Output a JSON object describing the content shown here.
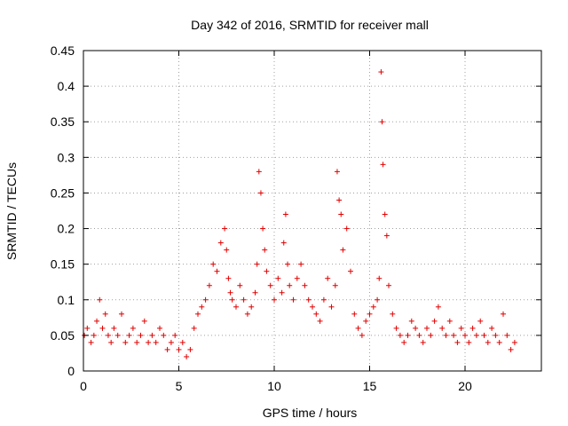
{
  "chart_data": {
    "type": "scatter",
    "title": "Day 342 of 2016, SRMTID for receiver mall",
    "xlabel": "GPS time / hours",
    "ylabel": "SRMTID / TECUs",
    "xlim": [
      0,
      24
    ],
    "ylim": [
      0,
      0.45
    ],
    "xticks": [
      0,
      5,
      10,
      15,
      20
    ],
    "xtick_labels": [
      "0",
      "5",
      "10",
      "15",
      "20"
    ],
    "yticks": [
      0,
      0.05,
      0.1,
      0.15,
      0.2,
      0.25,
      0.3,
      0.35,
      0.4,
      0.45
    ],
    "ytick_labels": [
      "0",
      "0.05",
      "0.1",
      "0.15",
      "0.2",
      "0.25",
      "0.3",
      "0.35",
      "0.4",
      "0.45"
    ],
    "grid": true,
    "marker": "plus",
    "marker_color": "#e00000",
    "series": [
      {
        "x": [
          0.05,
          0.2,
          0.4,
          0.55,
          0.7,
          0.85,
          1.0,
          1.15,
          1.3,
          1.45,
          1.6,
          1.8,
          2.0,
          2.2,
          2.4,
          2.6,
          2.8,
          3.0,
          3.2,
          3.4,
          3.6,
          3.8,
          4.0,
          4.2,
          4.4,
          4.6,
          4.8,
          5.0,
          5.2,
          5.4,
          5.6,
          5.8,
          6.0,
          6.2,
          6.4,
          6.6,
          6.8,
          7.0,
          7.2,
          7.4,
          7.5,
          7.6,
          7.7,
          7.8,
          8.0,
          8.2,
          8.4,
          8.6,
          8.8,
          9.0,
          9.1,
          9.2,
          9.3,
          9.4,
          9.5,
          9.6,
          9.8,
          10.0,
          10.2,
          10.4,
          10.5,
          10.6,
          10.7,
          10.8,
          11.0,
          11.2,
          11.4,
          11.6,
          11.8,
          12.0,
          12.2,
          12.4,
          12.6,
          12.8,
          13.0,
          13.2,
          13.3,
          13.4,
          13.5,
          13.6,
          13.8,
          14.0,
          14.2,
          14.4,
          14.6,
          14.8,
          15.0,
          15.2,
          15.4,
          15.5,
          15.6,
          15.65,
          15.7,
          15.8,
          15.9,
          16.0,
          16.2,
          16.4,
          16.6,
          16.8,
          17.0,
          17.2,
          17.4,
          17.6,
          17.8,
          18.0,
          18.2,
          18.4,
          18.6,
          18.8,
          19.0,
          19.2,
          19.4,
          19.6,
          19.8,
          20.0,
          20.2,
          20.4,
          20.6,
          20.8,
          21.0,
          21.2,
          21.4,
          21.6,
          21.8,
          22.0,
          22.2,
          22.4,
          22.6
        ],
        "y": [
          0.05,
          0.06,
          0.04,
          0.05,
          0.07,
          0.1,
          0.06,
          0.08,
          0.05,
          0.04,
          0.06,
          0.05,
          0.08,
          0.04,
          0.05,
          0.06,
          0.04,
          0.05,
          0.07,
          0.04,
          0.05,
          0.04,
          0.06,
          0.05,
          0.03,
          0.04,
          0.05,
          0.03,
          0.04,
          0.02,
          0.03,
          0.06,
          0.08,
          0.09,
          0.1,
          0.12,
          0.15,
          0.14,
          0.18,
          0.2,
          0.17,
          0.13,
          0.11,
          0.1,
          0.09,
          0.12,
          0.1,
          0.08,
          0.09,
          0.11,
          0.15,
          0.28,
          0.25,
          0.2,
          0.17,
          0.14,
          0.12,
          0.1,
          0.13,
          0.11,
          0.18,
          0.22,
          0.15,
          0.12,
          0.1,
          0.13,
          0.15,
          0.12,
          0.1,
          0.09,
          0.08,
          0.07,
          0.1,
          0.13,
          0.09,
          0.12,
          0.28,
          0.24,
          0.22,
          0.17,
          0.2,
          0.14,
          0.08,
          0.06,
          0.05,
          0.07,
          0.08,
          0.09,
          0.1,
          0.13,
          0.42,
          0.35,
          0.29,
          0.22,
          0.19,
          0.12,
          0.08,
          0.06,
          0.05,
          0.04,
          0.05,
          0.07,
          0.06,
          0.05,
          0.04,
          0.06,
          0.05,
          0.07,
          0.09,
          0.06,
          0.05,
          0.07,
          0.05,
          0.04,
          0.06,
          0.05,
          0.04,
          0.06,
          0.05,
          0.07,
          0.05,
          0.04,
          0.06,
          0.05,
          0.04,
          0.08,
          0.05,
          0.03,
          0.04
        ]
      }
    ]
  }
}
